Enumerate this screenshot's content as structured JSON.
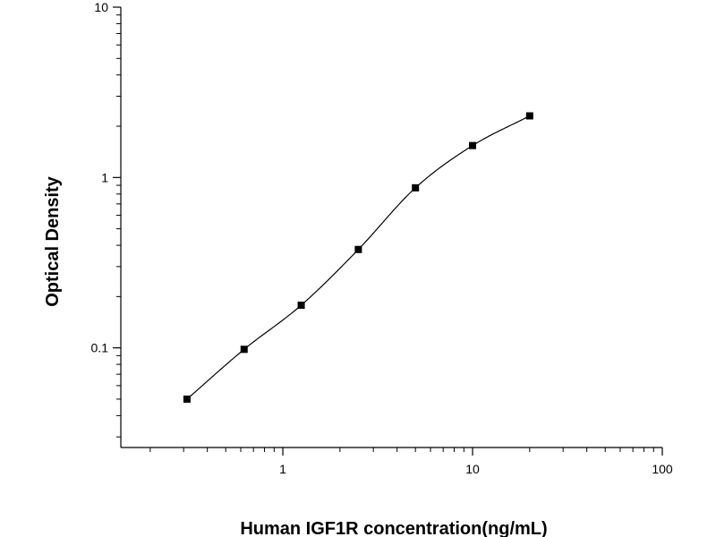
{
  "chart_data": {
    "type": "scatter",
    "title": "",
    "xlabel": "Human IGF1R concentration(ng/mL)",
    "ylabel": "Optical Density",
    "xscale": "log",
    "yscale": "log",
    "xlim": [
      0.14,
      100
    ],
    "ylim": [
      0.026,
      10
    ],
    "x_ticks": [
      1,
      10,
      100
    ],
    "x_tick_labels": [
      "1",
      "10",
      "100"
    ],
    "y_ticks": [
      0.1,
      1,
      10
    ],
    "y_tick_labels": [
      "0.1",
      "1",
      "10"
    ],
    "grid": false,
    "legend": "none",
    "series": [
      {
        "marker": "square",
        "points": [
          {
            "x": 0.3125,
            "y": 0.05
          },
          {
            "x": 0.625,
            "y": 0.098
          },
          {
            "x": 1.25,
            "y": 0.178
          },
          {
            "x": 2.5,
            "y": 0.378
          },
          {
            "x": 5,
            "y": 0.87
          },
          {
            "x": 10,
            "y": 1.54
          },
          {
            "x": 20,
            "y": 2.3
          }
        ]
      }
    ],
    "fit_curve": {
      "type": "four-parameter-logistic",
      "x_range": [
        0.3125,
        20
      ]
    },
    "colors": {
      "axis": "#000000",
      "marker": "#000000",
      "curve": "#000000"
    }
  }
}
